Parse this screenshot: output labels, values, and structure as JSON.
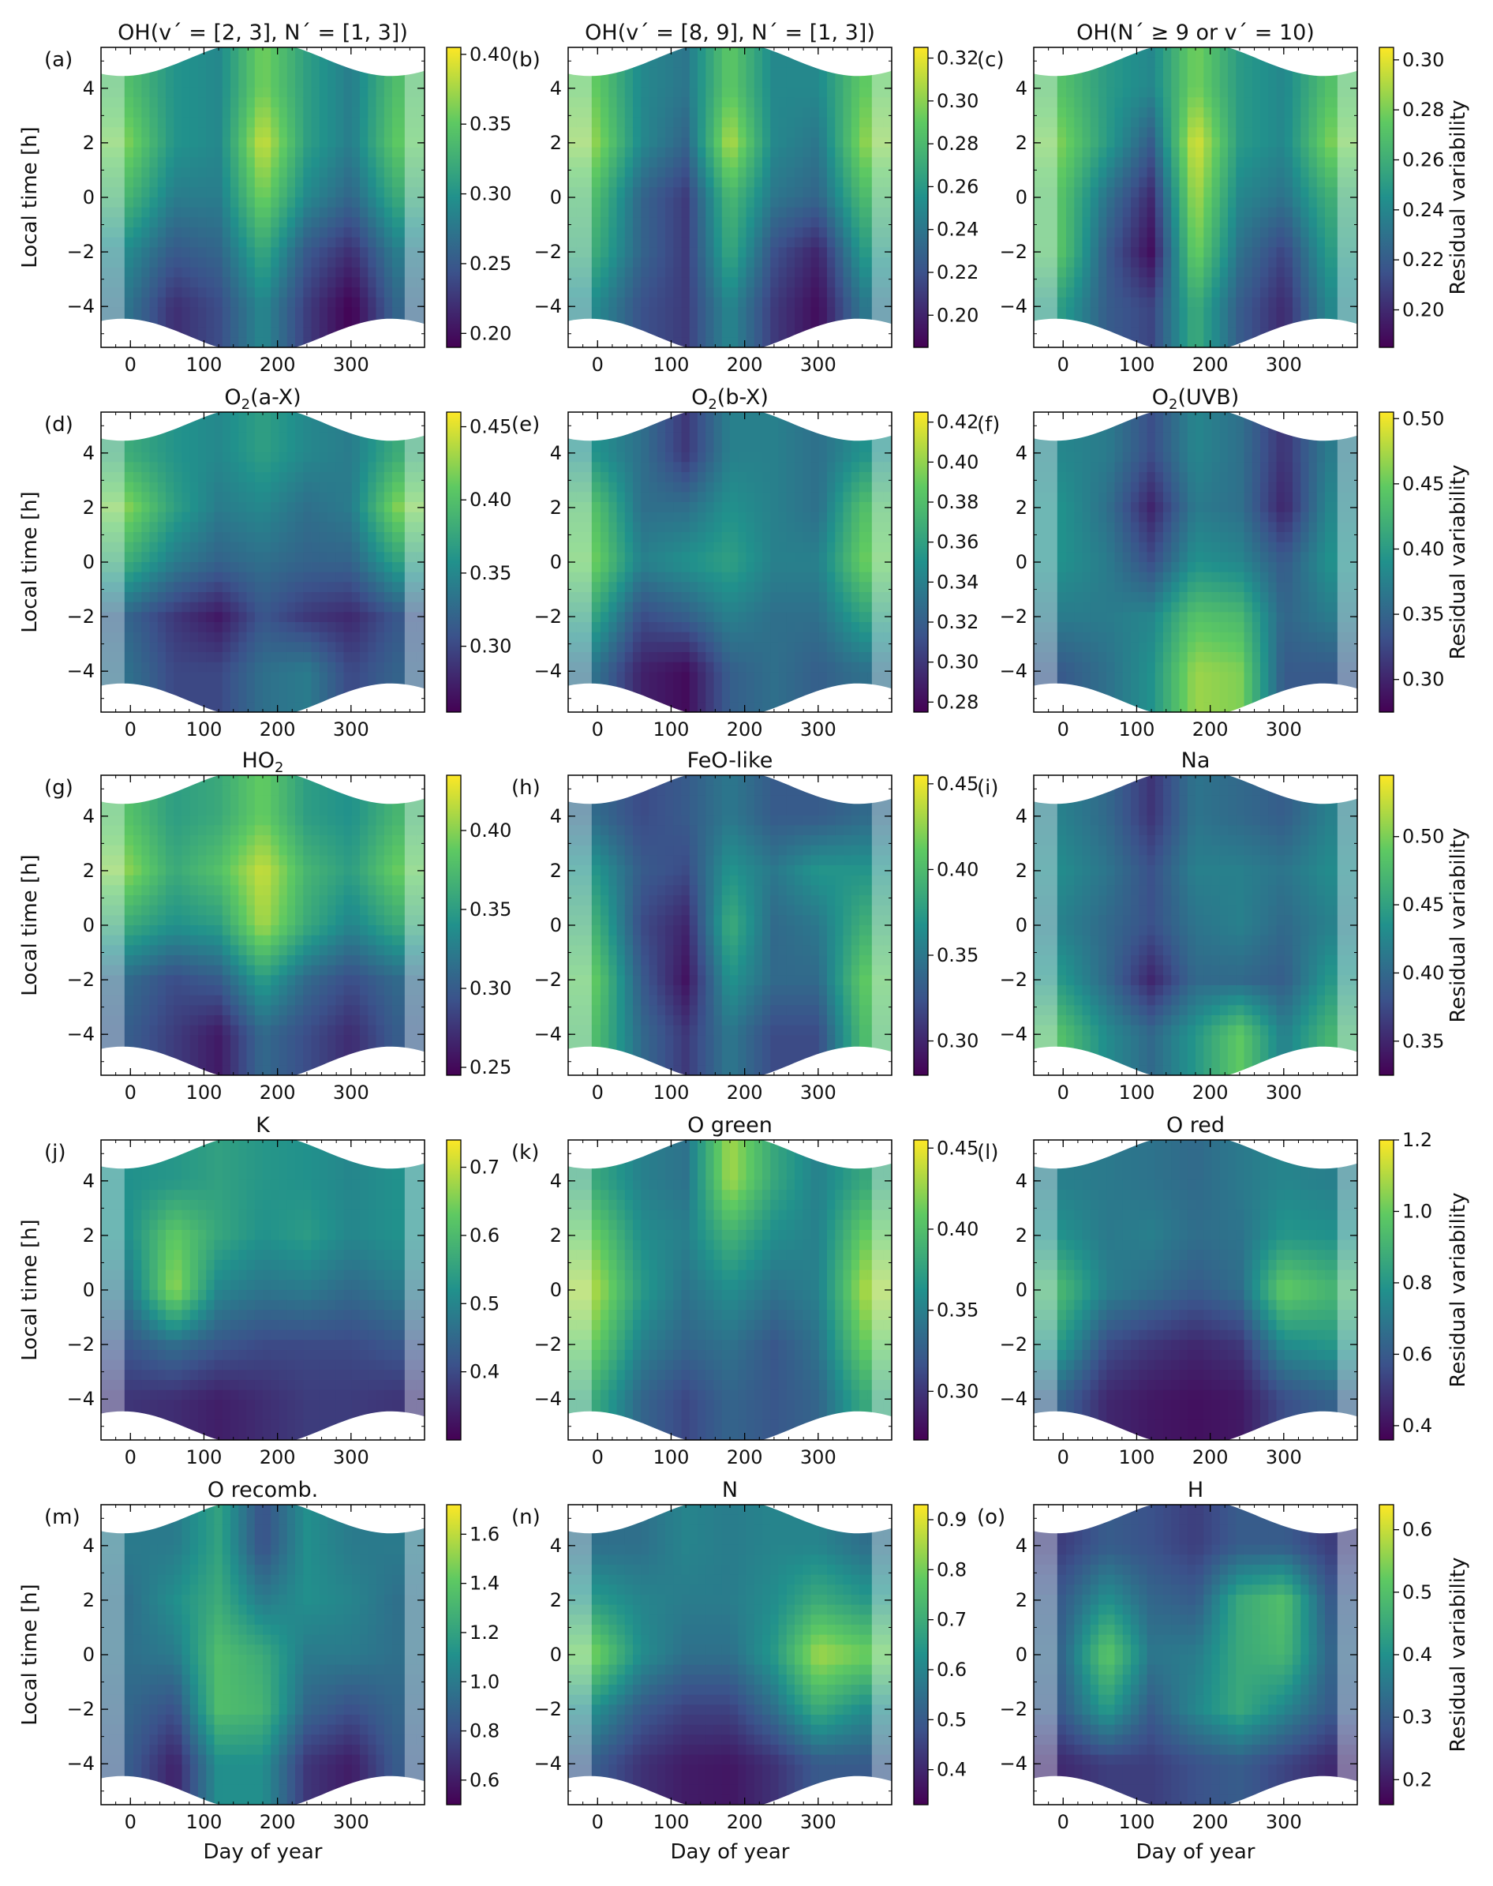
{
  "figure": {
    "x_axis_label": "Day of year",
    "y_axis_label": "Local time [h]",
    "colorbar_label": "Residual variability",
    "x_ticks": [
      0,
      100,
      200,
      300
    ],
    "y_ticks": [
      4,
      2,
      0,
      -2,
      -4
    ],
    "colormap": "viridis",
    "colormap_stops": [
      "#440154",
      "#3b528b",
      "#21918c",
      "#5ec962",
      "#fde725"
    ]
  },
  "chart_data": [
    {
      "type": "heatmap",
      "panel": "(a)",
      "title": "OH(v´ = [2, 3], N´ = [1, 3])",
      "xlim": [
        -40,
        400
      ],
      "ylim": [
        -5.5,
        5.5
      ],
      "cbar_range": [
        0.19,
        0.405
      ],
      "cbar_ticks": [
        "0.20",
        "0.25",
        "0.30",
        "0.35",
        "0.40"
      ],
      "x": [
        0,
        60,
        120,
        180,
        240,
        300,
        360
      ],
      "y": [
        4,
        2,
        0,
        -2,
        -4
      ],
      "z": [
        [
          0.34,
          0.3,
          0.29,
          0.36,
          0.31,
          0.28,
          0.34
        ],
        [
          0.36,
          0.3,
          0.29,
          0.39,
          0.31,
          0.28,
          0.35
        ],
        [
          0.33,
          0.28,
          0.28,
          0.36,
          0.29,
          0.26,
          0.32
        ],
        [
          0.29,
          0.25,
          0.26,
          0.32,
          0.25,
          0.22,
          0.28
        ],
        [
          0.27,
          0.22,
          0.24,
          0.29,
          0.23,
          0.19,
          0.26
        ]
      ]
    },
    {
      "type": "heatmap",
      "panel": "(b)",
      "title": "OH(v´ = [8, 9], N´ = [1, 3])",
      "xlim": [
        -40,
        400
      ],
      "ylim": [
        -5.5,
        5.5
      ],
      "cbar_range": [
        0.185,
        0.325
      ],
      "cbar_ticks": [
        "0.20",
        "0.22",
        "0.24",
        "0.26",
        "0.28",
        "0.30",
        "0.32"
      ],
      "x": [
        0,
        60,
        120,
        180,
        240,
        300,
        360
      ],
      "y": [
        4,
        2,
        0,
        -2,
        -4
      ],
      "z": [
        [
          0.29,
          0.25,
          0.24,
          0.29,
          0.25,
          0.25,
          0.29
        ],
        [
          0.3,
          0.25,
          0.23,
          0.31,
          0.25,
          0.24,
          0.3
        ],
        [
          0.28,
          0.23,
          0.21,
          0.28,
          0.24,
          0.23,
          0.28
        ],
        [
          0.27,
          0.23,
          0.21,
          0.27,
          0.22,
          0.2,
          0.26
        ],
        [
          0.25,
          0.22,
          0.21,
          0.25,
          0.21,
          0.19,
          0.24
        ]
      ]
    },
    {
      "type": "heatmap",
      "panel": "(c)",
      "title": "OH(N´ ≥ 9 or v´ = 10)",
      "xlim": [
        -40,
        400
      ],
      "ylim": [
        -5.5,
        5.5
      ],
      "cbar_range": [
        0.185,
        0.305
      ],
      "cbar_ticks": [
        "0.20",
        "0.22",
        "0.24",
        "0.26",
        "0.28",
        "0.30"
      ],
      "x": [
        0,
        60,
        120,
        180,
        240,
        300,
        360
      ],
      "y": [
        4,
        2,
        0,
        -2,
        -4
      ],
      "z": [
        [
          0.27,
          0.25,
          0.24,
          0.28,
          0.25,
          0.24,
          0.27
        ],
        [
          0.28,
          0.25,
          0.22,
          0.3,
          0.25,
          0.24,
          0.28
        ],
        [
          0.27,
          0.23,
          0.2,
          0.29,
          0.24,
          0.23,
          0.26
        ],
        [
          0.27,
          0.22,
          0.19,
          0.28,
          0.23,
          0.21,
          0.25
        ],
        [
          0.25,
          0.22,
          0.21,
          0.26,
          0.22,
          0.2,
          0.24
        ]
      ]
    },
    {
      "type": "heatmap",
      "panel": "(d)",
      "title": "O2(a-X)",
      "xlim": [
        -40,
        400
      ],
      "ylim": [
        -5.5,
        5.5
      ],
      "cbar_range": [
        0.255,
        0.46
      ],
      "cbar_ticks": [
        "0.30",
        "0.35",
        "0.40",
        "0.45"
      ],
      "x": [
        0,
        60,
        120,
        180,
        240,
        300,
        360
      ],
      "y": [
        4,
        2,
        0,
        -2,
        -4
      ],
      "z": [
        [
          0.38,
          0.36,
          0.35,
          0.37,
          0.35,
          0.34,
          0.38
        ],
        [
          0.42,
          0.37,
          0.34,
          0.35,
          0.33,
          0.34,
          0.42
        ],
        [
          0.38,
          0.34,
          0.32,
          0.33,
          0.32,
          0.32,
          0.37
        ],
        [
          0.32,
          0.29,
          0.27,
          0.31,
          0.29,
          0.28,
          0.31
        ],
        [
          0.33,
          0.3,
          0.3,
          0.33,
          0.34,
          0.3,
          0.32
        ]
      ]
    },
    {
      "type": "heatmap",
      "panel": "(e)",
      "title": "O2(b-X)",
      "xlim": [
        -40,
        400
      ],
      "ylim": [
        -5.5,
        5.5
      ],
      "cbar_range": [
        0.275,
        0.425
      ],
      "cbar_ticks": [
        "0.28",
        "0.30",
        "0.32",
        "0.34",
        "0.36",
        "0.38",
        "0.40",
        "0.42"
      ],
      "x": [
        0,
        60,
        120,
        180,
        240,
        300,
        360
      ],
      "y": [
        4,
        2,
        0,
        -2,
        -4
      ],
      "z": [
        [
          0.35,
          0.33,
          0.3,
          0.34,
          0.34,
          0.33,
          0.35
        ],
        [
          0.38,
          0.33,
          0.33,
          0.35,
          0.34,
          0.33,
          0.38
        ],
        [
          0.39,
          0.34,
          0.35,
          0.36,
          0.34,
          0.34,
          0.39
        ],
        [
          0.36,
          0.31,
          0.32,
          0.34,
          0.33,
          0.33,
          0.36
        ],
        [
          0.33,
          0.29,
          0.28,
          0.32,
          0.33,
          0.32,
          0.33
        ]
      ]
    },
    {
      "type": "heatmap",
      "panel": "(f)",
      "title": "O2(UVB)",
      "xlim": [
        -40,
        400
      ],
      "ylim": [
        -5.5,
        5.5
      ],
      "cbar_range": [
        0.275,
        0.505
      ],
      "cbar_ticks": [
        "0.30",
        "0.35",
        "0.40",
        "0.45",
        "0.50"
      ],
      "x": [
        0,
        60,
        120,
        180,
        240,
        300,
        360
      ],
      "y": [
        4,
        2,
        0,
        -2,
        -4
      ],
      "z": [
        [
          0.38,
          0.37,
          0.33,
          0.38,
          0.36,
          0.31,
          0.37
        ],
        [
          0.39,
          0.36,
          0.3,
          0.37,
          0.36,
          0.3,
          0.38
        ],
        [
          0.39,
          0.37,
          0.33,
          0.39,
          0.38,
          0.34,
          0.39
        ],
        [
          0.37,
          0.37,
          0.38,
          0.44,
          0.43,
          0.35,
          0.37
        ],
        [
          0.34,
          0.36,
          0.39,
          0.47,
          0.46,
          0.34,
          0.34
        ]
      ]
    },
    {
      "type": "heatmap",
      "panel": "(g)",
      "title": "HO2",
      "xlim": [
        -40,
        400
      ],
      "ylim": [
        -5.5,
        5.5
      ],
      "cbar_range": [
        0.245,
        0.435
      ],
      "cbar_ticks": [
        "0.25",
        "0.30",
        "0.35",
        "0.40"
      ],
      "x": [
        0,
        60,
        120,
        180,
        240,
        300,
        360
      ],
      "y": [
        4,
        2,
        0,
        -2,
        -4
      ],
      "z": [
        [
          0.38,
          0.35,
          0.36,
          0.39,
          0.35,
          0.34,
          0.37
        ],
        [
          0.4,
          0.36,
          0.38,
          0.42,
          0.37,
          0.35,
          0.39
        ],
        [
          0.36,
          0.34,
          0.35,
          0.41,
          0.36,
          0.33,
          0.36
        ],
        [
          0.31,
          0.29,
          0.3,
          0.35,
          0.31,
          0.29,
          0.31
        ],
        [
          0.3,
          0.28,
          0.26,
          0.31,
          0.29,
          0.27,
          0.3
        ]
      ]
    },
    {
      "type": "heatmap",
      "panel": "(h)",
      "title": "FeO-like",
      "xlim": [
        -40,
        400
      ],
      "ylim": [
        -5.5,
        5.5
      ],
      "cbar_range": [
        0.28,
        0.455
      ],
      "cbar_ticks": [
        "0.30",
        "0.35",
        "0.40",
        "0.45"
      ],
      "x": [
        0,
        60,
        120,
        180,
        240,
        300,
        360
      ],
      "y": [
        4,
        2,
        0,
        -2,
        -4
      ],
      "z": [
        [
          0.34,
          0.32,
          0.33,
          0.35,
          0.33,
          0.33,
          0.34
        ],
        [
          0.37,
          0.33,
          0.32,
          0.37,
          0.35,
          0.37,
          0.37
        ],
        [
          0.39,
          0.32,
          0.3,
          0.39,
          0.34,
          0.35,
          0.39
        ],
        [
          0.41,
          0.33,
          0.29,
          0.37,
          0.34,
          0.34,
          0.41
        ],
        [
          0.4,
          0.34,
          0.31,
          0.35,
          0.32,
          0.32,
          0.4
        ]
      ]
    },
    {
      "type": "heatmap",
      "panel": "(i)",
      "title": "Na",
      "xlim": [
        -40,
        400
      ],
      "ylim": [
        -5.5,
        5.5
      ],
      "cbar_range": [
        0.325,
        0.545
      ],
      "cbar_ticks": [
        "0.35",
        "0.40",
        "0.45",
        "0.50"
      ],
      "x": [
        0,
        60,
        120,
        180,
        240,
        300,
        360
      ],
      "y": [
        4,
        2,
        0,
        -2,
        -4
      ],
      "z": [
        [
          0.42,
          0.4,
          0.36,
          0.41,
          0.4,
          0.39,
          0.42
        ],
        [
          0.43,
          0.41,
          0.38,
          0.42,
          0.42,
          0.41,
          0.43
        ],
        [
          0.42,
          0.4,
          0.38,
          0.41,
          0.42,
          0.4,
          0.42
        ],
        [
          0.44,
          0.4,
          0.35,
          0.4,
          0.4,
          0.39,
          0.44
        ],
        [
          0.48,
          0.43,
          0.4,
          0.44,
          0.49,
          0.42,
          0.47
        ]
      ]
    },
    {
      "type": "heatmap",
      "panel": "(j)",
      "title": "K",
      "xlim": [
        -40,
        400
      ],
      "ylim": [
        -5.5,
        5.5
      ],
      "cbar_range": [
        0.3,
        0.74
      ],
      "cbar_ticks": [
        "0.4",
        "0.5",
        "0.6",
        "0.7"
      ],
      "x": [
        0,
        60,
        120,
        180,
        240,
        300,
        360
      ],
      "y": [
        4,
        2,
        0,
        -2,
        -4
      ],
      "z": [
        [
          0.52,
          0.53,
          0.55,
          0.53,
          0.52,
          0.5,
          0.52
        ],
        [
          0.52,
          0.63,
          0.56,
          0.52,
          0.54,
          0.5,
          0.52
        ],
        [
          0.48,
          0.67,
          0.5,
          0.47,
          0.48,
          0.45,
          0.48
        ],
        [
          0.42,
          0.46,
          0.42,
          0.4,
          0.4,
          0.4,
          0.42
        ],
        [
          0.37,
          0.36,
          0.34,
          0.36,
          0.38,
          0.38,
          0.37
        ]
      ]
    },
    {
      "type": "heatmap",
      "panel": "(k)",
      "title": "O green",
      "xlim": [
        -40,
        400
      ],
      "ylim": [
        -5.5,
        5.5
      ],
      "cbar_range": [
        0.27,
        0.455
      ],
      "cbar_ticks": [
        "0.30",
        "0.35",
        "0.40",
        "0.45"
      ],
      "x": [
        0,
        60,
        120,
        180,
        240,
        300,
        360
      ],
      "y": [
        4,
        2,
        0,
        -2,
        -4
      ],
      "z": [
        [
          0.38,
          0.35,
          0.34,
          0.43,
          0.38,
          0.35,
          0.38
        ],
        [
          0.41,
          0.36,
          0.35,
          0.39,
          0.36,
          0.35,
          0.41
        ],
        [
          0.43,
          0.37,
          0.34,
          0.36,
          0.34,
          0.35,
          0.43
        ],
        [
          0.41,
          0.35,
          0.33,
          0.34,
          0.32,
          0.34,
          0.41
        ],
        [
          0.38,
          0.33,
          0.31,
          0.33,
          0.32,
          0.33,
          0.38
        ]
      ]
    },
    {
      "type": "heatmap",
      "panel": "(l)",
      "title": "O red",
      "xlim": [
        -40,
        400
      ],
      "ylim": [
        -5.5,
        5.5
      ],
      "cbar_range": [
        0.36,
        1.2
      ],
      "cbar_ticks": [
        "0.4",
        "0.6",
        "0.8",
        "1.0",
        "1.2"
      ],
      "x": [
        0,
        60,
        120,
        180,
        240,
        300,
        360
      ],
      "y": [
        4,
        2,
        0,
        -2,
        -4
      ],
      "z": [
        [
          0.72,
          0.7,
          0.68,
          0.65,
          0.7,
          0.74,
          0.72
        ],
        [
          0.78,
          0.7,
          0.72,
          0.66,
          0.68,
          0.8,
          0.78
        ],
        [
          0.92,
          0.72,
          0.66,
          0.6,
          0.66,
          1.0,
          0.92
        ],
        [
          0.8,
          0.56,
          0.5,
          0.46,
          0.5,
          0.76,
          0.8
        ],
        [
          0.62,
          0.46,
          0.42,
          0.4,
          0.42,
          0.56,
          0.62
        ]
      ]
    },
    {
      "type": "heatmap",
      "panel": "(m)",
      "title": "O recomb.",
      "xlim": [
        -40,
        400
      ],
      "ylim": [
        -5.5,
        5.5
      ],
      "cbar_range": [
        0.5,
        1.72
      ],
      "cbar_ticks": [
        "0.6",
        "0.8",
        "1.0",
        "1.2",
        "1.4",
        "1.6"
      ],
      "x": [
        0,
        60,
        120,
        180,
        240,
        300,
        360
      ],
      "y": [
        4,
        2,
        0,
        -2,
        -4
      ],
      "z": [
        [
          1.0,
          1.0,
          1.2,
          0.8,
          1.1,
          1.0,
          1.0
        ],
        [
          0.95,
          1.1,
          1.25,
          1.0,
          1.1,
          1.05,
          0.95
        ],
        [
          0.95,
          1.0,
          1.35,
          1.25,
          1.0,
          1.0,
          0.95
        ],
        [
          0.9,
          0.8,
          1.35,
          1.3,
          0.9,
          0.8,
          0.9
        ],
        [
          0.85,
          0.62,
          1.1,
          1.1,
          0.7,
          0.6,
          0.85
        ]
      ]
    },
    {
      "type": "heatmap",
      "panel": "(n)",
      "title": "N",
      "xlim": [
        -40,
        400
      ],
      "ylim": [
        -5.5,
        5.5
      ],
      "cbar_range": [
        0.33,
        0.93
      ],
      "cbar_ticks": [
        "0.4",
        "0.5",
        "0.6",
        "0.7",
        "0.8",
        "0.9"
      ],
      "x": [
        0,
        60,
        120,
        180,
        240,
        300,
        360
      ],
      "y": [
        4,
        2,
        0,
        -2,
        -4
      ],
      "z": [
        [
          0.55,
          0.55,
          0.6,
          0.58,
          0.6,
          0.6,
          0.55
        ],
        [
          0.65,
          0.6,
          0.58,
          0.58,
          0.62,
          0.7,
          0.65
        ],
        [
          0.8,
          0.62,
          0.55,
          0.55,
          0.65,
          0.85,
          0.8
        ],
        [
          0.62,
          0.5,
          0.45,
          0.45,
          0.55,
          0.7,
          0.62
        ],
        [
          0.5,
          0.42,
          0.38,
          0.37,
          0.42,
          0.5,
          0.5
        ]
      ]
    },
    {
      "type": "heatmap",
      "panel": "(o)",
      "title": "H",
      "xlim": [
        -40,
        400
      ],
      "ylim": [
        -5.5,
        5.5
      ],
      "cbar_range": [
        0.16,
        0.64
      ],
      "cbar_ticks": [
        "0.2",
        "0.3",
        "0.4",
        "0.5",
        "0.6"
      ],
      "x": [
        0,
        60,
        120,
        180,
        240,
        300,
        360
      ],
      "y": [
        4,
        2,
        0,
        -2,
        -4
      ],
      "z": [
        [
          0.25,
          0.3,
          0.28,
          0.25,
          0.3,
          0.3,
          0.25
        ],
        [
          0.3,
          0.4,
          0.32,
          0.3,
          0.45,
          0.5,
          0.3
        ],
        [
          0.32,
          0.52,
          0.35,
          0.36,
          0.45,
          0.48,
          0.32
        ],
        [
          0.3,
          0.42,
          0.3,
          0.38,
          0.45,
          0.38,
          0.3
        ],
        [
          0.22,
          0.25,
          0.25,
          0.28,
          0.3,
          0.26,
          0.22
        ]
      ]
    }
  ]
}
